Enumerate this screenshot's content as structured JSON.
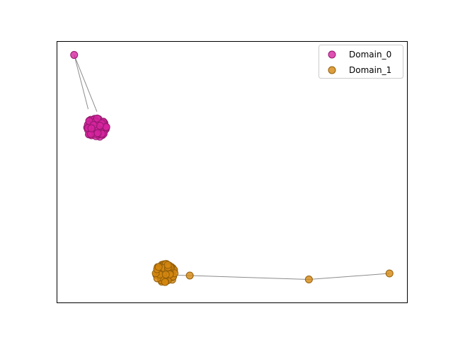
{
  "chart_data": {
    "type": "scatter",
    "title": "",
    "xlabel": "",
    "ylabel": "",
    "axes_ticks": false,
    "grid": false,
    "legend_position": "top-right",
    "xlim": [
      0,
      1
    ],
    "ylim": [
      0,
      1
    ],
    "series": [
      {
        "name": "Domain_0",
        "color": "#d6249f",
        "cluster": {
          "center": [
            0.112,
            0.668
          ],
          "radius": 0.06,
          "count": 90
        },
        "points": [
          [
            0.05,
            0.947
          ]
        ]
      },
      {
        "name": "Domain_1",
        "color": "#d4870f",
        "cluster": {
          "center": [
            0.31,
            0.112
          ],
          "radius": 0.058,
          "count": 90
        },
        "points": [
          [
            0.38,
            0.103
          ],
          [
            0.72,
            0.088
          ],
          [
            0.95,
            0.111
          ]
        ]
      }
    ],
    "edges": [
      {
        "from": [
          0.05,
          0.947
        ],
        "to": [
          0.09,
          0.74
        ]
      },
      {
        "from": [
          0.05,
          0.947
        ],
        "to": [
          0.115,
          0.73
        ]
      },
      {
        "from": [
          0.38,
          0.103
        ],
        "to": [
          0.72,
          0.088
        ]
      },
      {
        "from": [
          0.72,
          0.088
        ],
        "to": [
          0.95,
          0.111
        ]
      },
      {
        "from": [
          0.33,
          0.105
        ],
        "to": [
          0.38,
          0.103
        ]
      }
    ]
  }
}
